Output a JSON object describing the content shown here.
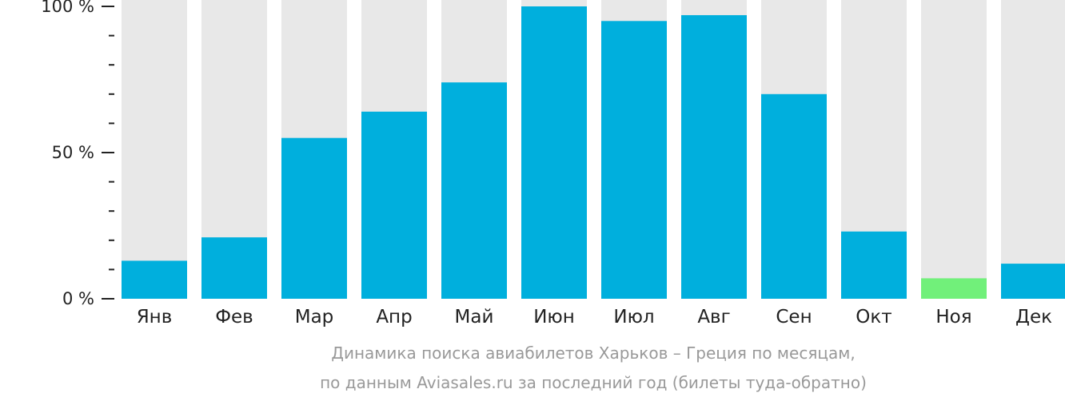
{
  "chart_data": {
    "type": "bar",
    "categories": [
      "Янв",
      "Фев",
      "Мар",
      "Апр",
      "Май",
      "Июн",
      "Июл",
      "Авг",
      "Сен",
      "Окт",
      "Ноя",
      "Дек"
    ],
    "values": [
      13,
      21,
      55,
      64,
      74,
      100,
      95,
      97,
      70,
      23,
      7,
      12
    ],
    "ylim": [
      0,
      100
    ],
    "yticks": [
      {
        "value": 0,
        "label": "0 %"
      },
      {
        "value": 50,
        "label": "50 %"
      },
      {
        "value": 100,
        "label": "100 %"
      }
    ],
    "minor_ticks": [
      10,
      20,
      30,
      40,
      60,
      70,
      80,
      90
    ],
    "highlight_index": 10,
    "colors": {
      "bar": "#00afdd",
      "highlight": "#71f07a",
      "background_column": "#e8e8e8",
      "axis": "#222222"
    },
    "caption": [
      "Динамика поиска авиабилетов Харьков – Греция по месяцам,",
      "по данным Aviasales.ru за последний год (билеты туда-обратно)"
    ]
  }
}
